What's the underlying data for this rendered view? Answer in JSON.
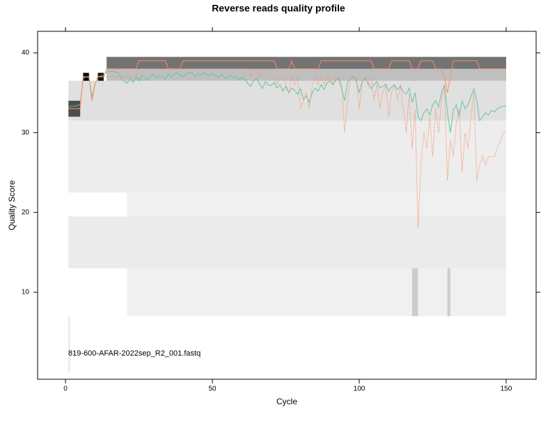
{
  "chart_data": {
    "type": "line",
    "title": "Reverse reads quality profile",
    "x_label": "Cycle",
    "y_label": "Quality Score",
    "annotation": "819-600-AFAR-2022sep_R2_001.fastq",
    "xlim": [
      -9.5,
      160.2
    ],
    "ylim": [
      -0.9,
      42.7
    ],
    "xticks": [
      0,
      50,
      100,
      150
    ],
    "yticks": [
      10,
      20,
      30,
      40
    ],
    "heatmap": [
      {
        "x": [
          21,
          150
        ],
        "y": [
          7,
          22.5
        ],
        "density": 0.06
      },
      {
        "x": [
          1,
          150
        ],
        "y": [
          13,
          19.5
        ],
        "density": 0.08
      },
      {
        "x": [
          1,
          150
        ],
        "y": [
          22.5,
          31.5
        ],
        "density": 0.07
      },
      {
        "x": [
          1,
          150
        ],
        "y": [
          31.5,
          36.5
        ],
        "density": 0.12
      },
      {
        "x": [
          14,
          150
        ],
        "y": [
          36.5,
          38
        ],
        "density": 0.25
      },
      {
        "x": [
          14,
          150
        ],
        "y": [
          38,
          39.5
        ],
        "density": 0.55
      },
      {
        "x": [
          1,
          5
        ],
        "y": [
          32,
          34
        ],
        "density": 0.7
      },
      {
        "x": [
          6,
          8
        ],
        "y": [
          36.5,
          37.5
        ],
        "density": 0.95
      },
      {
        "x": [
          11,
          13
        ],
        "y": [
          36.5,
          37.5
        ],
        "density": 0.9
      },
      {
        "x": [
          118,
          120
        ],
        "y": [
          7,
          13
        ],
        "density": 0.2
      },
      {
        "x": [
          130,
          131
        ],
        "y": [
          7,
          13
        ],
        "density": 0.2
      },
      {
        "x": [
          1,
          1.5
        ],
        "y": [
          0,
          7
        ],
        "density": 0.1
      }
    ],
    "x": [
      1,
      2,
      3,
      4,
      5,
      6,
      7,
      8,
      9,
      10,
      11,
      12,
      13,
      14,
      15,
      16,
      17,
      18,
      19,
      20,
      21,
      22,
      23,
      24,
      25,
      26,
      27,
      28,
      29,
      30,
      31,
      32,
      33,
      34,
      35,
      36,
      37,
      38,
      39,
      40,
      41,
      42,
      43,
      44,
      45,
      46,
      47,
      48,
      49,
      50,
      51,
      52,
      53,
      54,
      55,
      56,
      57,
      58,
      59,
      60,
      61,
      62,
      63,
      64,
      65,
      66,
      67,
      68,
      69,
      70,
      71,
      72,
      73,
      74,
      75,
      76,
      77,
      78,
      79,
      80,
      81,
      82,
      83,
      84,
      85,
      86,
      87,
      88,
      89,
      90,
      91,
      92,
      93,
      94,
      95,
      96,
      97,
      98,
      99,
      100,
      101,
      102,
      103,
      104,
      105,
      106,
      107,
      108,
      109,
      110,
      111,
      112,
      113,
      114,
      115,
      116,
      117,
      118,
      119,
      120,
      121,
      122,
      123,
      124,
      125,
      126,
      127,
      128,
      129,
      130,
      131,
      132,
      133,
      134,
      135,
      136,
      137,
      138,
      139,
      140,
      141,
      142,
      143,
      144,
      145,
      146,
      147,
      148,
      149,
      150
    ],
    "series": [
      {
        "color": "#66c2a5",
        "style": "solid",
        "values": [
          33.2,
          33.3,
          33.3,
          33.4,
          33.5,
          36.8,
          37.0,
          36.9,
          34.5,
          36.0,
          37.0,
          37.1,
          37.2,
          37.6,
          37.7,
          37.7,
          37.6,
          37.5,
          36.8,
          36.4,
          36.2,
          36.8,
          36.3,
          37.0,
          36.5,
          37.2,
          37.0,
          36.6,
          37.1,
          37.3,
          36.8,
          37.2,
          37.0,
          36.7,
          37.4,
          36.9,
          37.3,
          37.5,
          37.2,
          37.0,
          37.3,
          37.6,
          37.5,
          37.0,
          37.4,
          37.2,
          37.5,
          37.3,
          37.1,
          37.4,
          37.2,
          36.9,
          37.3,
          37.0,
          36.8,
          37.2,
          36.9,
          37.1,
          36.6,
          36.9,
          36.7,
          36.2,
          35.8,
          36.5,
          36.8,
          36.2,
          35.5,
          36.4,
          36.0,
          35.9,
          36.3,
          35.6,
          36.0,
          35.2,
          35.8,
          35.0,
          35.6,
          35.3,
          34.8,
          35.5,
          34.2,
          34.6,
          33.8,
          35.0,
          35.6,
          35.2,
          36.0,
          35.4,
          36.2,
          36.5,
          36.0,
          36.6,
          36.8,
          35.5,
          34.0,
          36.3,
          36.8,
          37.0,
          36.4,
          35.0,
          36.5,
          36.8,
          36.2,
          35.5,
          36.0,
          36.4,
          35.6,
          35.8,
          36.1,
          35.2,
          35.7,
          36.0,
          35.4,
          35.8,
          35.1,
          34.8,
          35.6,
          33.8,
          35.0,
          32.0,
          31.5,
          32.5,
          33.0,
          32.2,
          33.5,
          34.0,
          33.2,
          35.0,
          36.0,
          32.5,
          30.0,
          32.8,
          33.5,
          32.0,
          34.0,
          33.0,
          33.5,
          34.5,
          35.5,
          34.0,
          31.5,
          32.0,
          32.5,
          32.2,
          32.8,
          32.6,
          33.0,
          33.2,
          33.3,
          33.4
        ]
      },
      {
        "color": "#fc8d62",
        "style": "solid",
        "values": [
          33,
          33,
          33,
          33,
          33,
          37,
          37,
          37,
          34,
          36,
          37,
          37,
          37,
          38,
          38,
          38,
          38,
          38,
          38,
          38,
          38,
          38,
          38,
          38,
          39,
          39,
          39,
          39,
          39,
          39,
          39,
          39,
          39,
          39,
          38,
          38,
          38,
          38,
          38,
          39,
          39,
          39,
          39,
          39,
          39,
          39,
          39,
          39,
          39,
          39,
          39,
          39,
          39,
          39,
          39,
          39,
          39,
          39,
          39,
          39,
          39,
          39,
          39,
          39,
          39,
          39,
          39,
          39,
          39,
          39,
          39,
          38,
          38,
          38,
          38,
          38,
          39,
          38,
          38,
          38,
          38,
          38,
          38,
          38,
          38,
          38,
          39,
          39,
          39,
          39,
          39,
          39,
          39,
          39,
          39,
          39,
          39,
          39,
          39,
          39,
          39,
          39,
          39,
          39,
          38,
          38,
          38,
          38,
          38,
          38,
          39,
          39,
          39,
          39,
          39,
          39,
          39,
          38,
          38,
          38,
          39,
          39,
          39,
          39,
          39,
          38,
          38,
          38,
          37,
          35,
          37,
          39,
          39,
          39,
          39,
          39,
          39,
          39,
          39,
          39,
          38,
          38,
          38,
          38,
          38,
          38,
          38,
          38,
          38,
          38
        ]
      },
      {
        "color": "#fc8d62",
        "style": "dotted",
        "values": [
          33,
          33,
          33,
          33,
          33,
          37,
          37,
          37,
          34,
          36,
          37,
          37,
          37,
          37,
          37,
          37,
          37,
          37,
          37,
          37,
          37,
          37,
          37,
          37,
          38,
          38,
          38,
          38,
          38,
          38,
          38,
          38,
          38,
          38,
          38,
          38,
          38,
          38,
          38,
          38,
          38,
          38,
          38,
          38,
          38,
          38,
          38,
          38,
          38,
          38,
          38,
          38,
          38,
          38,
          38,
          38,
          38,
          38,
          38,
          38,
          38,
          38,
          37,
          38,
          38,
          37,
          38,
          38,
          37,
          37,
          37,
          36,
          37,
          37,
          36,
          35,
          37,
          36,
          37,
          33,
          34,
          35,
          33,
          36,
          37,
          36,
          37,
          36,
          37,
          37,
          36,
          37,
          37,
          36,
          30,
          34,
          37,
          37,
          37,
          33,
          36,
          37,
          36,
          37,
          34,
          36,
          33,
          35,
          36,
          32,
          35,
          36,
          34,
          36,
          33,
          30,
          35,
          28,
          33,
          18,
          26,
          30,
          28,
          32,
          27,
          33,
          30,
          34,
          36,
          24,
          29,
          27,
          31,
          33,
          25,
          30,
          28,
          32,
          35,
          24,
          26,
          27,
          26,
          27,
          27,
          27,
          28,
          29,
          30,
          30
        ]
      }
    ]
  }
}
